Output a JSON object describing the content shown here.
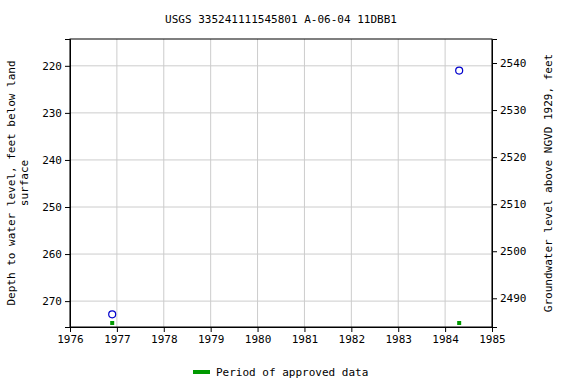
{
  "chart_data": {
    "type": "scatter",
    "title": "USGS 335241111545801 A-06-04 11DBB1",
    "y_label": [
      "Depth to water level, feet below land",
      "surface"
    ],
    "y2_label": "Groundwater level above NGVD 1929, feet",
    "x": [
      1976.9,
      1984.3
    ],
    "series": [
      {
        "values": [
          272.8,
          221.0
        ],
        "color": "#0000cc",
        "marker": "circle-open"
      }
    ],
    "approved": {
      "name": "Period of approved data",
      "color": "#009900",
      "x": [
        1976.9,
        1984.3
      ]
    },
    "xlim": [
      1976,
      1985
    ],
    "xticks": [
      1976,
      1977,
      1978,
      1979,
      1980,
      1981,
      1982,
      1983,
      1984,
      1985
    ],
    "ylim": [
      275.5,
      214.3
    ],
    "yticks": [
      220,
      230,
      240,
      250,
      260,
      270
    ],
    "y2lim": [
      2483.9,
      2545.1
    ],
    "y2ticks": [
      2490,
      2500,
      2510,
      2520,
      2530,
      2540
    ],
    "grid": true
  }
}
